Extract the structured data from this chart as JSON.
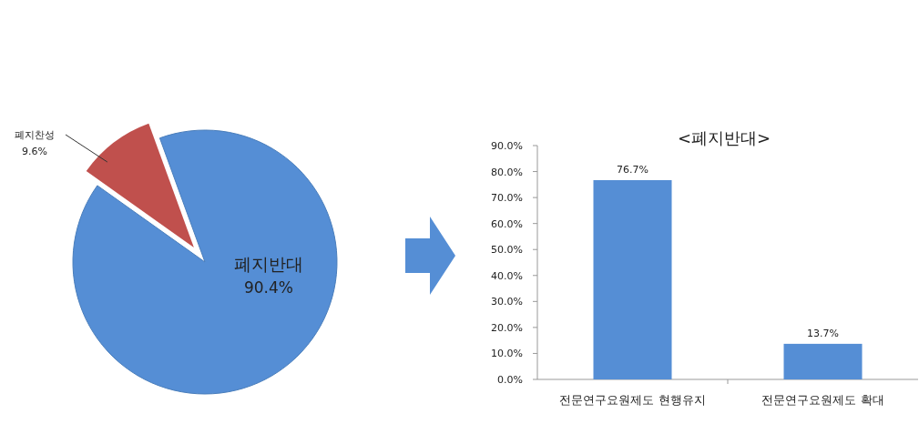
{
  "chart_data": [
    {
      "type": "pie",
      "categories": [
        "폐지반대",
        "폐지찬성"
      ],
      "values": [
        90.4,
        9.6
      ],
      "colors": [
        "#558ed5",
        "#c0504d"
      ],
      "value_labels": [
        "90.4%",
        "9.6%"
      ]
    },
    {
      "type": "bar",
      "title": "<폐지반대>",
      "categories": [
        "전문연구요원제도 현행유지",
        "전문연구요원제도 확대"
      ],
      "values": [
        76.7,
        13.7
      ],
      "color": "#558ed5",
      "value_labels": [
        "76.7%",
        "13.7%"
      ],
      "ylim": [
        0,
        90
      ],
      "yticks": [
        {
          "value": 0,
          "label": "0.0%"
        },
        {
          "value": 10,
          "label": "10.0%"
        },
        {
          "value": 20,
          "label": "20.0%"
        },
        {
          "value": 30,
          "label": "30.0%"
        },
        {
          "value": 40,
          "label": "40.0%"
        },
        {
          "value": 50,
          "label": "50.0%"
        },
        {
          "value": 60,
          "label": "60.0%"
        },
        {
          "value": 70,
          "label": "70.0%"
        },
        {
          "value": 80,
          "label": "80.0%"
        },
        {
          "value": 90,
          "label": "90.0%"
        }
      ]
    }
  ]
}
